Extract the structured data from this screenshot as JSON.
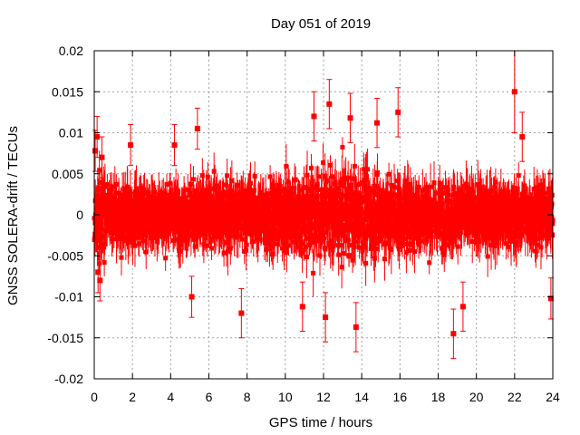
{
  "chart_data": {
    "type": "scatter",
    "title": "Day 051 of 2019",
    "xlabel": "GPS time / hours",
    "ylabel": "GNSS SOLERA-drift / TECUs",
    "xlim": [
      0,
      24
    ],
    "ylim": [
      -0.02,
      0.02
    ],
    "xticks": [
      0,
      2,
      4,
      6,
      8,
      10,
      12,
      14,
      16,
      18,
      20,
      22,
      24
    ],
    "xtick_labels": [
      "0",
      "2",
      "4",
      "6",
      "8",
      "10",
      "12",
      "14",
      "16",
      "18",
      "20",
      "22",
      "24"
    ],
    "yticks": [
      -0.02,
      -0.015,
      -0.01,
      -0.005,
      0,
      0.005,
      0.01,
      0.015,
      0.02
    ],
    "ytick_labels": [
      "-0.02",
      "-0.015",
      "-0.01",
      "-0.005",
      "0",
      "0.005",
      "0.01",
      "0.015",
      "0.02"
    ],
    "grid": true,
    "series_color": "#ff0000",
    "series": [
      {
        "name": "SOLERA-drift",
        "marker": "square",
        "error_bars": true,
        "points": [
          {
            "x": 0.05,
            "y": 0.0078,
            "err": 0.0025
          },
          {
            "x": 0.15,
            "y": 0.0095,
            "err": 0.0025
          },
          {
            "x": 0.2,
            "y": -0.007,
            "err": 0.0025
          },
          {
            "x": 0.3,
            "y": -0.008,
            "err": 0.0025
          },
          {
            "x": 0.4,
            "y": 0.007,
            "err": 0.0025
          },
          {
            "x": 1.9,
            "y": 0.0085,
            "err": 0.0025
          },
          {
            "x": 4.2,
            "y": 0.0085,
            "err": 0.0025
          },
          {
            "x": 5.1,
            "y": -0.01,
            "err": 0.0025
          },
          {
            "x": 5.4,
            "y": 0.0105,
            "err": 0.0025
          },
          {
            "x": 7.7,
            "y": -0.012,
            "err": 0.003
          },
          {
            "x": 10.9,
            "y": -0.0112,
            "err": 0.003
          },
          {
            "x": 11.5,
            "y": 0.012,
            "err": 0.003
          },
          {
            "x": 12.1,
            "y": -0.0125,
            "err": 0.003
          },
          {
            "x": 12.3,
            "y": 0.0135,
            "err": 0.003
          },
          {
            "x": 13.4,
            "y": 0.0118,
            "err": 0.003
          },
          {
            "x": 13.7,
            "y": -0.0137,
            "err": 0.003
          },
          {
            "x": 14.8,
            "y": 0.0112,
            "err": 0.003
          },
          {
            "x": 15.9,
            "y": 0.0125,
            "err": 0.003
          },
          {
            "x": 18.8,
            "y": -0.0145,
            "err": 0.003
          },
          {
            "x": 19.3,
            "y": -0.0112,
            "err": 0.003
          },
          {
            "x": 22.0,
            "y": 0.015,
            "err": 0.005
          },
          {
            "x": 22.4,
            "y": 0.0095,
            "err": 0.003
          },
          {
            "x": 23.9,
            "y": -0.0102,
            "err": 0.0025
          }
        ]
      }
    ]
  }
}
